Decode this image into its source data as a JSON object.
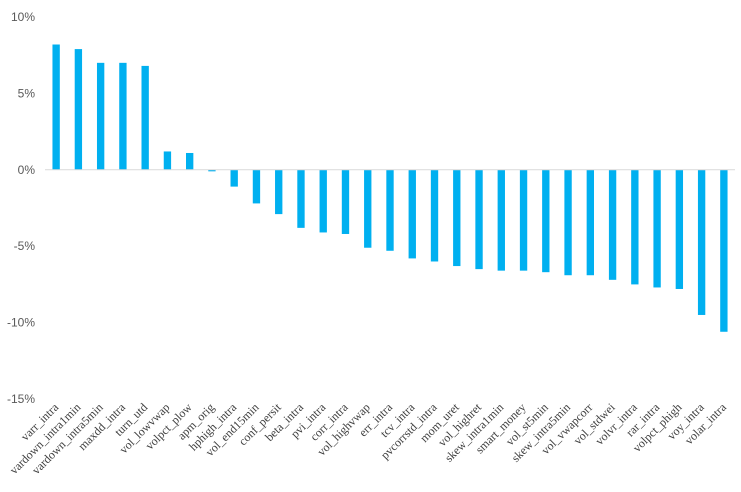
{
  "chart_data": {
    "type": "bar",
    "title": "",
    "xlabel": "",
    "ylabel": "",
    "ylim": [
      -15,
      10
    ],
    "yticks": [
      10,
      5,
      0,
      -5,
      -10,
      -15
    ],
    "ytick_labels": [
      "10%",
      "5%",
      "0%",
      "-5%",
      "-10%",
      "-15%"
    ],
    "grid": false,
    "legend": "none",
    "bar_color": "#00B0F0",
    "axis_color": "#D9D9D9",
    "categories": [
      "varr_intra",
      "vardown_intra1min",
      "vardown_intra5min",
      "maxdd_intra",
      "turn_utd",
      "vol_lowvwap",
      "volpct_plow",
      "apm_orig",
      "hphigh_intra",
      "vol_end15min",
      "conf_persit",
      "beta_intra",
      "pvi_intra",
      "corr_intra",
      "vol_highvwap",
      "err_intra",
      "tcv_intra",
      "pvcorrstd_intra",
      "mom_uret",
      "vol_highret",
      "skew_intra1min",
      "smart_money",
      "vol_st5min",
      "skew_intra5min",
      "vol_vwapcorr",
      "vol_stdwei",
      "volvr_intra",
      "rar_intra",
      "volpct_phigh",
      "voy_intra",
      "volar_intra"
    ],
    "values": [
      8.2,
      7.9,
      7.0,
      7.0,
      6.8,
      1.2,
      1.1,
      -0.1,
      -1.1,
      -2.2,
      -2.9,
      -3.8,
      -4.1,
      -4.2,
      -5.1,
      -5.3,
      -5.8,
      -6.0,
      -6.3,
      -6.5,
      -6.6,
      -6.6,
      -6.7,
      -6.9,
      -6.9,
      -7.2,
      -7.5,
      -7.7,
      -7.8,
      -9.5,
      -10.6
    ]
  }
}
